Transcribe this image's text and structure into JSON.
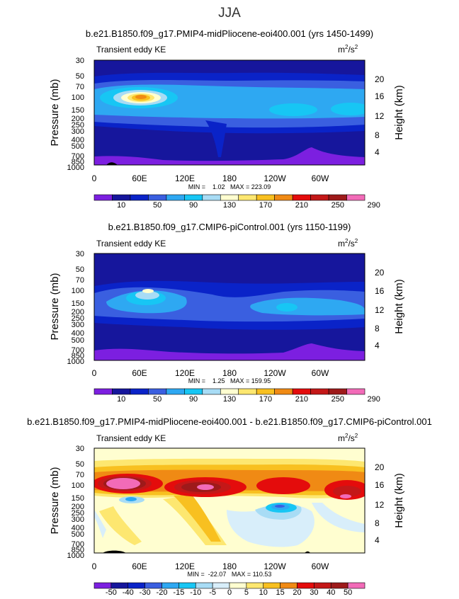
{
  "page": {
    "season": "JJA"
  },
  "chart_data": [
    {
      "type": "heatmap",
      "title": "b.e21.B1850.f09_g17.PMIP4-midPliocene-eoi400.001 (yrs 1450-1499)",
      "field_label": "Transient eddy KE",
      "units": "m²/s²",
      "ylabel": "Pressure (mb)",
      "y2label": "Height (km)",
      "xticks": [
        "0",
        "60E",
        "120E",
        "180",
        "120W",
        "60W"
      ],
      "yticks": [
        "30",
        "50",
        "70",
        "100",
        "150",
        "200",
        "250",
        "300",
        "400",
        "500",
        "700",
        "850",
        "1000"
      ],
      "y2ticks": [
        "20",
        "16",
        "12",
        "8",
        "4"
      ],
      "stats": "MIN =    1.02   MAX = 223.09",
      "min": 1.02,
      "max": 223.09,
      "colorbar_labels": [
        "10",
        "50",
        "90",
        "130",
        "170",
        "210",
        "250",
        "290"
      ],
      "colors": [
        "#7c1fe0",
        "#16169c",
        "#0a23c8",
        "#3a5fe0",
        "#2ea8f2",
        "#17c6f4",
        "#a8dcf5",
        "#fffed0",
        "#fde770",
        "#f8c020",
        "#f08a14",
        "#e40c0c",
        "#c41818",
        "#9e1a1a",
        "#f26bb8"
      ]
    },
    {
      "type": "heatmap",
      "title": "b.e21.B1850.f09_g17.CMIP6-piControl.001 (yrs 1150-1199)",
      "field_label": "Transient eddy KE",
      "units": "m²/s²",
      "ylabel": "Pressure (mb)",
      "y2label": "Height (km)",
      "xticks": [
        "0",
        "60E",
        "120E",
        "180",
        "120W",
        "60W"
      ],
      "yticks": [
        "30",
        "50",
        "70",
        "100",
        "150",
        "200",
        "250",
        "300",
        "400",
        "500",
        "700",
        "850",
        "1000"
      ],
      "y2ticks": [
        "20",
        "16",
        "12",
        "8",
        "4"
      ],
      "stats": "MIN =    1.25   MAX = 159.95",
      "min": 1.25,
      "max": 159.95,
      "colorbar_labels": [
        "10",
        "50",
        "90",
        "130",
        "170",
        "210",
        "250",
        "290"
      ],
      "colors": [
        "#7c1fe0",
        "#16169c",
        "#0a23c8",
        "#3a5fe0",
        "#2ea8f2",
        "#17c6f4",
        "#a8dcf5",
        "#fffed0",
        "#fde770",
        "#f8c020",
        "#f08a14",
        "#e40c0c",
        "#c41818",
        "#9e1a1a",
        "#f26bb8"
      ]
    },
    {
      "type": "heatmap",
      "title": "b.e21.B1850.f09_g17.PMIP4-midPliocene-eoi400.001 - b.e21.B1850.f09_g17.CMIP6-piControl.001",
      "field_label": "Transient eddy KE",
      "units": "m²/s²",
      "ylabel": "Pressure (mb)",
      "y2label": "Height (km)",
      "xticks": [
        "0",
        "60E",
        "120E",
        "180",
        "120W",
        "60W"
      ],
      "yticks": [
        "30",
        "50",
        "70",
        "100",
        "150",
        "200",
        "250",
        "300",
        "400",
        "500",
        "700",
        "850",
        "1000"
      ],
      "y2ticks": [
        "20",
        "16",
        "12",
        "8",
        "4"
      ],
      "stats": "MIN =  -22.07   MAX = 110.53",
      "min": -22.07,
      "max": 110.53,
      "colorbar_labels": [
        "-50",
        "-40",
        "-30",
        "-20",
        "-15",
        "-10",
        "-5",
        "0",
        "5",
        "10",
        "15",
        "20",
        "30",
        "40",
        "50"
      ],
      "colors": [
        "#7c1fe0",
        "#16169c",
        "#0a23c8",
        "#3a5fe0",
        "#2ea8f2",
        "#17c6f4",
        "#a8dcf5",
        "#d8eefa",
        "#fffed0",
        "#fde770",
        "#f8c020",
        "#f08a14",
        "#e40c0c",
        "#c41818",
        "#9e1a1a",
        "#f26bb8"
      ]
    }
  ]
}
